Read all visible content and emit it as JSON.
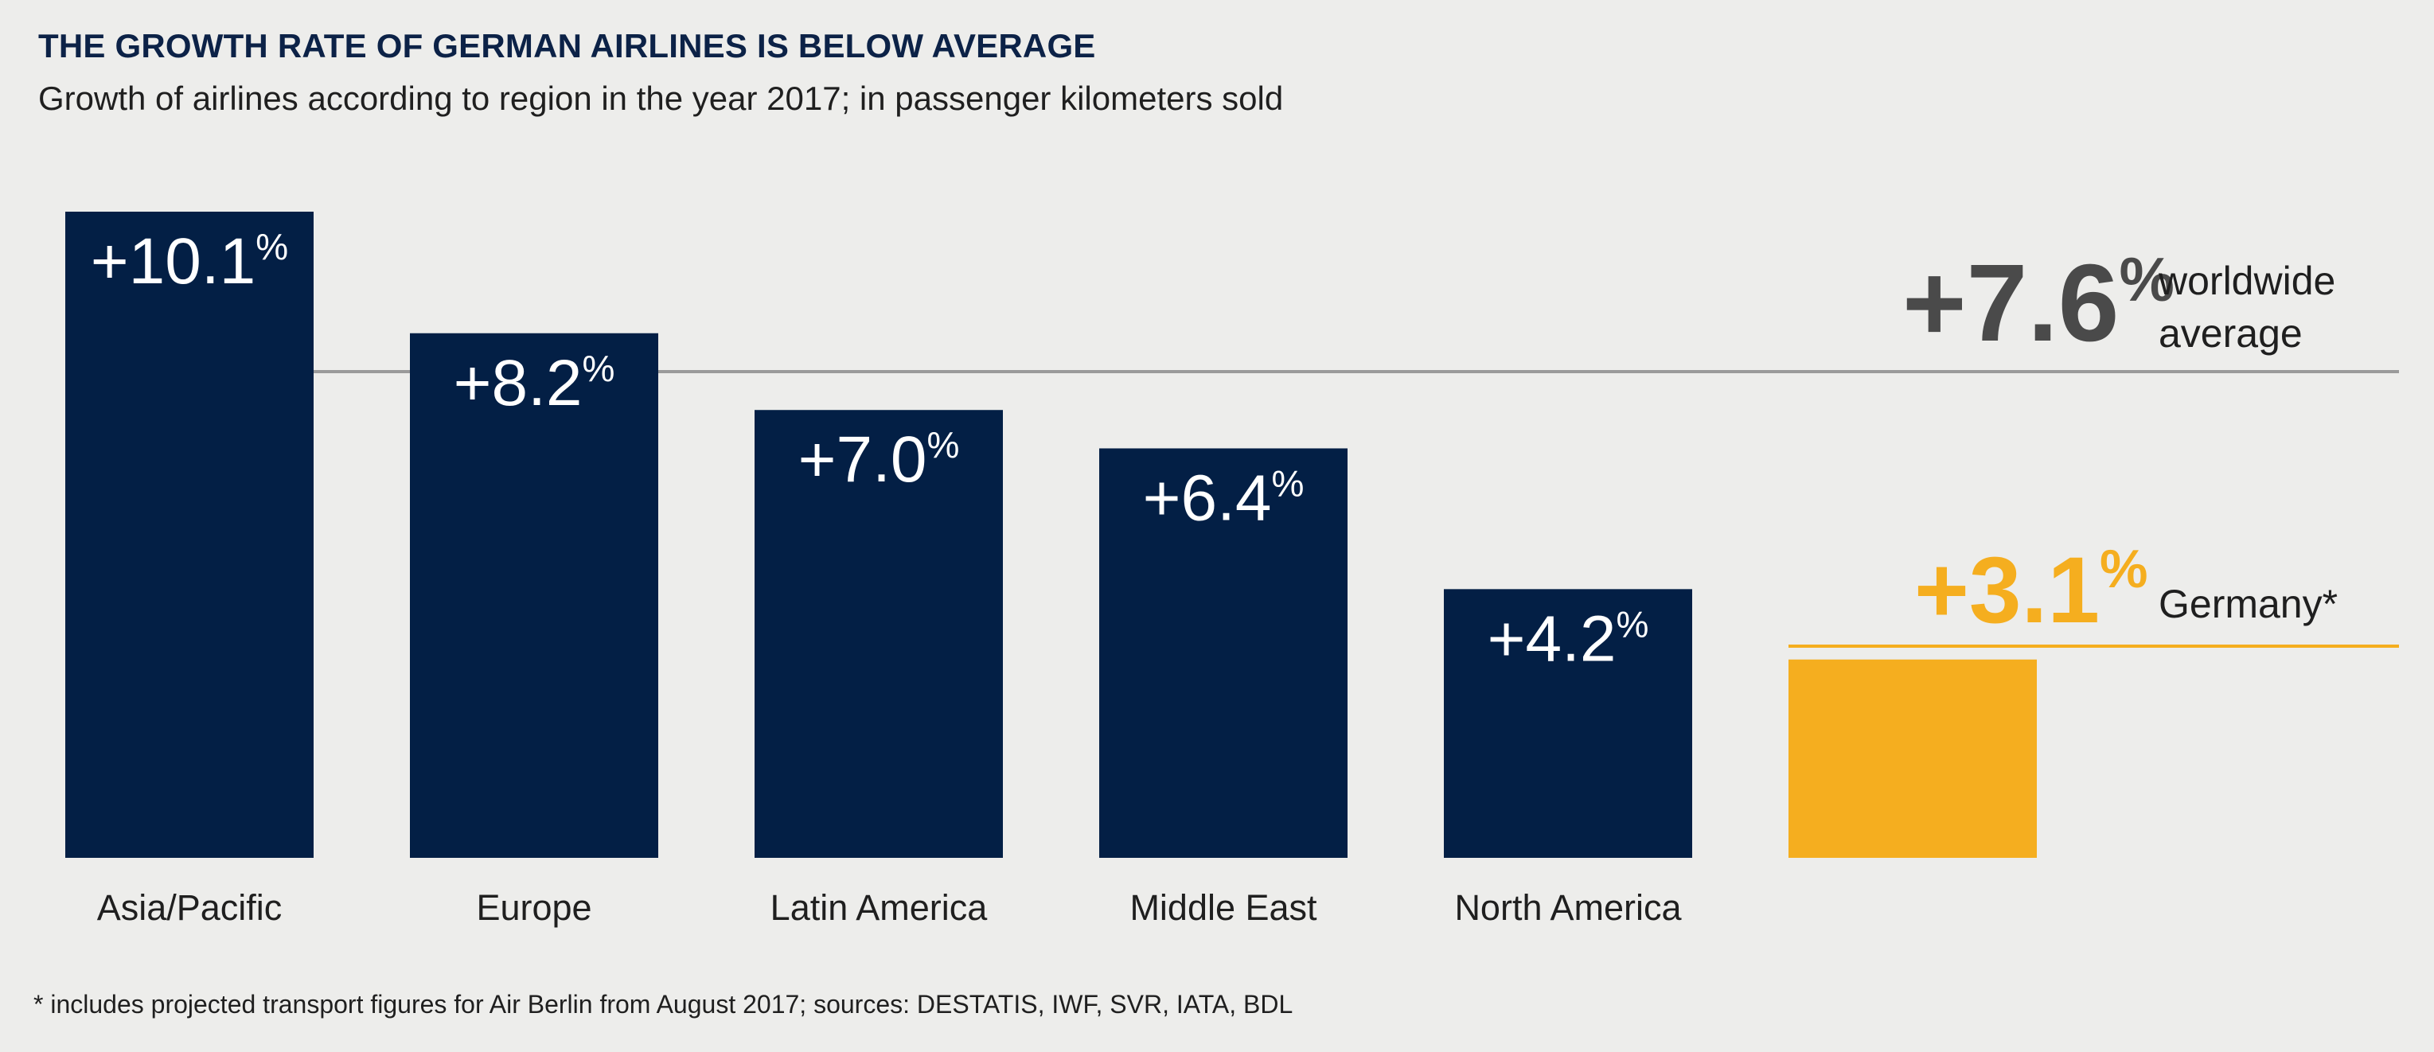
{
  "chart_data": {
    "type": "bar",
    "title": "THE GROWTH RATE OF GERMAN AIRLINES IS BELOW AVERAGE",
    "subtitle": "Growth of airlines according to region in the year 2017; in passenger kilometers sold",
    "categories": [
      "Asia/Pacific",
      "Europe",
      "Latin America",
      "Middle East",
      "North America",
      ""
    ],
    "values": [
      10.1,
      8.2,
      7.0,
      6.4,
      4.2,
      3.1
    ],
    "value_labels": [
      "+10.1",
      "+8.2",
      "+7.0",
      "+6.4",
      "+4.2",
      "+3.1"
    ],
    "unit": "%",
    "ylim": [
      0,
      10.1
    ],
    "grid": false,
    "colors": {
      "regions": "#031f45",
      "germany": "#f5ae1f",
      "average_line": "#9a9a9a",
      "average_text": "#4a4a4a"
    },
    "reference_lines": [
      {
        "value": 7.6,
        "label_value": "+7.6",
        "label_lines": [
          "worldwide",
          "average"
        ]
      },
      {
        "value": 3.1,
        "label_value": "+3.1",
        "label_lines": [
          "Germany*"
        ]
      }
    ]
  },
  "footnote": "* includes projected transport figures for Air Berlin from August 2017; sources: DESTATIS, IWF, SVR, IATA, BDL"
}
